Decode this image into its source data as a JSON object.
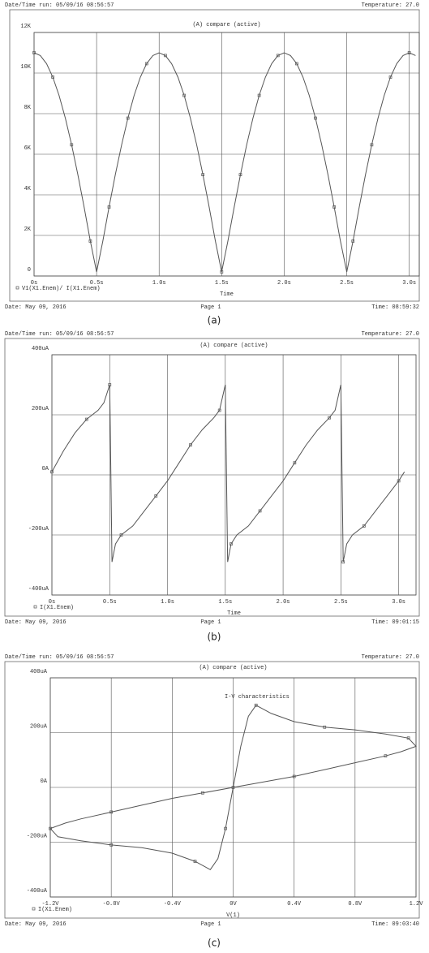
{
  "chart_data": [
    {
      "type": "line",
      "header_left": "Date/Time run: 05/09/16 08:56:57",
      "header_right": "Temperature: 27.0",
      "title": "(A) compare (active)",
      "xlabel": "Time",
      "footer_left": "Date: May 09, 2016",
      "footer_center": "Page 1",
      "footer_right": "Time: 08:59:32",
      "caption": "(a)",
      "x": [
        0,
        0.05,
        0.1,
        0.15,
        0.2,
        0.25,
        0.3,
        0.35,
        0.4,
        0.45,
        0.5,
        0.55,
        0.6,
        0.65,
        0.7,
        0.75,
        0.8,
        0.85,
        0.9,
        0.95,
        1.0,
        1.05,
        1.1,
        1.15,
        1.2,
        1.25,
        1.3,
        1.35,
        1.4,
        1.45,
        1.5,
        1.55,
        1.6,
        1.65,
        1.7,
        1.75,
        1.8,
        1.85,
        1.9,
        1.95,
        2.0,
        2.05,
        2.1,
        2.15,
        2.2,
        2.25,
        2.3,
        2.35,
        2.4,
        2.45,
        2.5,
        2.55,
        2.6,
        2.65,
        2.7,
        2.75,
        2.8,
        2.85,
        2.9,
        2.95,
        3.0,
        3.05
      ],
      "series": [
        {
          "name": "V1(X1.Enem)/ I(X1.Enem)",
          "color": "#555555",
          "values": [
            11000,
            10865,
            10462,
            9801,
            8899,
            7778,
            6466,
            4994,
            3399,
            1720,
            200,
            1720,
            3399,
            4994,
            6466,
            7778,
            8899,
            9801,
            10462,
            10865,
            11000,
            10865,
            10462,
            9801,
            8899,
            7778,
            6466,
            4994,
            3399,
            1720,
            200,
            1720,
            3399,
            4994,
            6466,
            7778,
            8899,
            9801,
            10462,
            10865,
            11000,
            10865,
            10462,
            9801,
            8899,
            7778,
            6466,
            4994,
            3399,
            1720,
            200,
            1720,
            3399,
            4994,
            6466,
            7778,
            8899,
            9801,
            10462,
            10865,
            11000,
            10865
          ]
        }
      ],
      "xlim": [
        0,
        3.08
      ],
      "xticks": [
        {
          "value": 0,
          "label": "0s"
        },
        {
          "value": 0.5,
          "label": "0.5s"
        },
        {
          "value": 1.0,
          "label": "1.0s"
        },
        {
          "value": 1.5,
          "label": "1.5s"
        },
        {
          "value": 2.0,
          "label": "2.0s"
        },
        {
          "value": 2.5,
          "label": "2.5s"
        },
        {
          "value": 3.0,
          "label": "3.0s"
        }
      ],
      "ylim": [
        0,
        12000
      ],
      "yticks": [
        0,
        {
          "value": 2000,
          "label": "2K"
        },
        {
          "value": 4000,
          "label": "4K"
        },
        {
          "value": 6000,
          "label": "6K"
        },
        {
          "value": 8000,
          "label": "8K"
        },
        {
          "value": 10000,
          "label": "10K"
        },
        {
          "value": 12000,
          "label": "12K"
        }
      ],
      "grid": true
    },
    {
      "type": "line",
      "header_left": "Date/Time run: 05/09/16 08:56:57",
      "header_right": "Temperature: 27.0",
      "title": "(A) compare (active)",
      "xlabel": "Time",
      "footer_left": "Date: May 09, 2016",
      "footer_center": "Page 1",
      "footer_right": "Time: 09:01:15",
      "caption": "(b)",
      "x": [
        0,
        0.1,
        0.2,
        0.3,
        0.4,
        0.45,
        0.5,
        0.52,
        0.55,
        0.6,
        0.7,
        0.8,
        0.9,
        1.0,
        1.1,
        1.2,
        1.3,
        1.4,
        1.45,
        1.5,
        1.52,
        1.55,
        1.6,
        1.7,
        1.8,
        1.9,
        2.0,
        2.1,
        2.2,
        2.3,
        2.4,
        2.45,
        2.5,
        2.52,
        2.55,
        2.6,
        2.7,
        2.8,
        2.9,
        3.0,
        3.05
      ],
      "series": [
        {
          "name": "I(X1.Enem)",
          "color": "#555555",
          "values": [
            10,
            80,
            140,
            185,
            215,
            240,
            300,
            -290,
            -230,
            -200,
            -170,
            -120,
            -70,
            -20,
            40,
            100,
            150,
            190,
            215,
            300,
            -290,
            -230,
            -200,
            -170,
            -120,
            -70,
            -20,
            40,
            100,
            150,
            190,
            215,
            300,
            -290,
            -230,
            -200,
            -170,
            -120,
            -70,
            -20,
            10
          ]
        }
      ],
      "xlim": [
        0,
        3.15
      ],
      "xticks": [
        {
          "value": 0,
          "label": "0s"
        },
        {
          "value": 0.5,
          "label": "0.5s"
        },
        {
          "value": 1.0,
          "label": "1.0s"
        },
        {
          "value": 1.5,
          "label": "1.5s"
        },
        {
          "value": 2.0,
          "label": "2.0s"
        },
        {
          "value": 2.5,
          "label": "2.5s"
        },
        {
          "value": 3.0,
          "label": "3.0s"
        }
      ],
      "ylim": [
        -400,
        400
      ],
      "yticks": [
        {
          "value": -400,
          "label": "-400uA"
        },
        {
          "value": -200,
          "label": "-200uA"
        },
        {
          "value": 0,
          "label": "0A"
        },
        {
          "value": 200,
          "label": "200uA"
        },
        {
          "value": 400,
          "label": "400uA"
        }
      ],
      "grid": true
    },
    {
      "type": "line",
      "header_left": "Date/Time run: 05/09/16 08:56:57",
      "header_right": "Temperature: 27.0",
      "title": "(A) compare (active)",
      "xlabel": "V(1)",
      "annotation": "I-V characteristics",
      "footer_left": "Date: May 09, 2016",
      "footer_center": "Page 1",
      "footer_right": "Time: 09:03:40",
      "caption": "(c)",
      "x": [
        0,
        0.05,
        0.1,
        0.15,
        0.25,
        0.4,
        0.6,
        0.8,
        1.0,
        1.15,
        1.2,
        1.1,
        1.0,
        0.8,
        0.6,
        0.4,
        0.2,
        0,
        -0.2,
        -0.4,
        -0.6,
        -0.8,
        -1.0,
        -1.1,
        -1.2,
        -1.15,
        -1.0,
        -0.8,
        -0.6,
        -0.4,
        -0.25,
        -0.15,
        -0.1,
        -0.05,
        0
      ],
      "series": [
        {
          "name": "I(X1.Enem)",
          "color": "#555555",
          "values": [
            0,
            150,
            260,
            300,
            270,
            240,
            220,
            210,
            195,
            180,
            150,
            130,
            115,
            90,
            65,
            40,
            20,
            0,
            -20,
            -40,
            -65,
            -90,
            -115,
            -130,
            -150,
            -180,
            -195,
            -210,
            -220,
            -240,
            -270,
            -300,
            -260,
            -150,
            0
          ]
        }
      ],
      "xlim": [
        -1.2,
        1.2
      ],
      "xticks": [
        {
          "value": -1.2,
          "label": "-1.2V"
        },
        {
          "value": -0.8,
          "label": "-0.8V"
        },
        {
          "value": -0.4,
          "label": "-0.4V"
        },
        {
          "value": 0,
          "label": "0V"
        },
        {
          "value": 0.4,
          "label": "0.4V"
        },
        {
          "value": 0.8,
          "label": "0.8V"
        },
        {
          "value": 1.2,
          "label": "1.2V"
        }
      ],
      "ylim": [
        -400,
        400
      ],
      "yticks": [
        {
          "value": -400,
          "label": "-400uA"
        },
        {
          "value": -200,
          "label": "-200uA"
        },
        {
          "value": 0,
          "label": "0A"
        },
        {
          "value": 200,
          "label": "200uA"
        },
        {
          "value": 400,
          "label": "400uA"
        }
      ],
      "grid": true
    }
  ]
}
